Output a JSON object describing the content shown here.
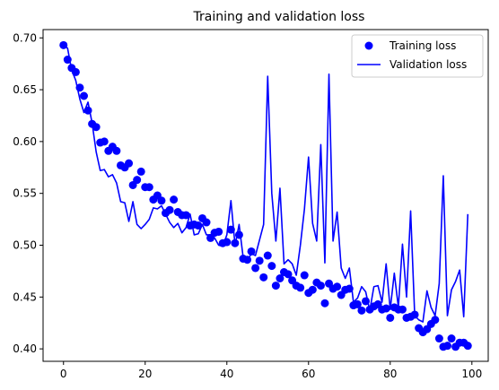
{
  "chart_data": {
    "type": "line",
    "title": "Training and validation loss",
    "xlabel": "",
    "ylabel": "",
    "xlim": [
      -5,
      104
    ],
    "ylim": [
      0.388,
      0.708
    ],
    "xticks": [
      0,
      20,
      40,
      60,
      80,
      100
    ],
    "xtick_labels": [
      "0",
      "20",
      "40",
      "60",
      "80",
      "100"
    ],
    "yticks": [
      0.4,
      0.45,
      0.5,
      0.55,
      0.6,
      0.65,
      0.7
    ],
    "ytick_labels": [
      "0.40",
      "0.45",
      "0.50",
      "0.55",
      "0.60",
      "0.65",
      "0.70"
    ],
    "grid": false,
    "legend_position": "upper right",
    "color": "#0000ff",
    "x": [
      0,
      1,
      2,
      3,
      4,
      5,
      6,
      7,
      8,
      9,
      10,
      11,
      12,
      13,
      14,
      15,
      16,
      17,
      18,
      19,
      20,
      21,
      22,
      23,
      24,
      25,
      26,
      27,
      28,
      29,
      30,
      31,
      32,
      33,
      34,
      35,
      36,
      37,
      38,
      39,
      40,
      41,
      42,
      43,
      44,
      45,
      46,
      47,
      48,
      49,
      50,
      51,
      52,
      53,
      54,
      55,
      56,
      57,
      58,
      59,
      60,
      61,
      62,
      63,
      64,
      65,
      66,
      67,
      68,
      69,
      70,
      71,
      72,
      73,
      74,
      75,
      76,
      77,
      78,
      79,
      80,
      81,
      82,
      83,
      84,
      85,
      86,
      87,
      88,
      89,
      90,
      91,
      92,
      93,
      94,
      95,
      96,
      97,
      98,
      99
    ],
    "series": [
      {
        "name": "Training loss",
        "style": "markers",
        "values": [
          0.693,
          0.679,
          0.671,
          0.667,
          0.652,
          0.644,
          0.63,
          0.617,
          0.614,
          0.599,
          0.6,
          0.591,
          0.595,
          0.591,
          0.577,
          0.575,
          0.579,
          0.558,
          0.563,
          0.571,
          0.556,
          0.556,
          0.544,
          0.548,
          0.543,
          0.531,
          0.534,
          0.544,
          0.532,
          0.529,
          0.529,
          0.519,
          0.52,
          0.519,
          0.526,
          0.522,
          0.507,
          0.512,
          0.513,
          0.502,
          0.503,
          0.515,
          0.502,
          0.51,
          0.487,
          0.486,
          0.494,
          0.478,
          0.485,
          0.469,
          0.49,
          0.48,
          0.461,
          0.468,
          0.474,
          0.472,
          0.466,
          0.461,
          0.459,
          0.471,
          0.454,
          0.457,
          0.464,
          0.461,
          0.444,
          0.463,
          0.458,
          0.46,
          0.452,
          0.457,
          0.458,
          0.442,
          0.443,
          0.437,
          0.446,
          0.438,
          0.441,
          0.443,
          0.438,
          0.439,
          0.43,
          0.44,
          0.438,
          0.438,
          0.43,
          0.431,
          0.433,
          0.42,
          0.416,
          0.419,
          0.424,
          0.428,
          0.41,
          0.402,
          0.403,
          0.41,
          0.402,
          0.406,
          0.406,
          0.403
        ]
      },
      {
        "name": "Validation loss",
        "style": "line",
        "values": [
          0.693,
          0.69,
          0.669,
          0.659,
          0.641,
          0.628,
          0.638,
          0.618,
          0.59,
          0.572,
          0.573,
          0.566,
          0.568,
          0.56,
          0.542,
          0.541,
          0.523,
          0.542,
          0.52,
          0.516,
          0.52,
          0.525,
          0.536,
          0.535,
          0.538,
          0.53,
          0.522,
          0.517,
          0.521,
          0.512,
          0.517,
          0.53,
          0.51,
          0.511,
          0.52,
          0.51,
          0.51,
          0.507,
          0.5,
          0.499,
          0.51,
          0.543,
          0.5,
          0.52,
          0.488,
          0.485,
          0.492,
          0.49,
          0.505,
          0.52,
          0.663,
          0.55,
          0.504,
          0.555,
          0.482,
          0.486,
          0.482,
          0.471,
          0.5,
          0.535,
          0.585,
          0.521,
          0.504,
          0.597,
          0.483,
          0.665,
          0.504,
          0.532,
          0.478,
          0.468,
          0.478,
          0.445,
          0.449,
          0.46,
          0.455,
          0.437,
          0.46,
          0.461,
          0.445,
          0.482,
          0.438,
          0.473,
          0.44,
          0.501,
          0.45,
          0.533,
          0.432,
          0.428,
          0.426,
          0.456,
          0.44,
          0.432,
          0.463,
          0.567,
          0.432,
          0.457,
          0.465,
          0.476,
          0.431,
          0.53
        ]
      }
    ]
  }
}
